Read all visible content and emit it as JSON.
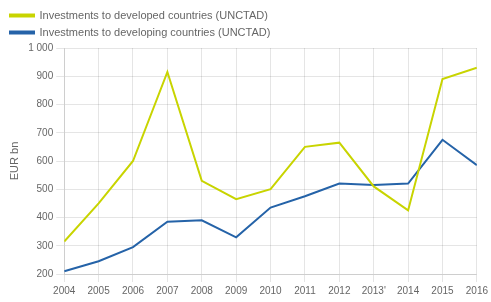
{
  "chart_data": {
    "type": "line",
    "ylabel": "EUR bn",
    "x": [
      2004,
      2005,
      2006,
      2007,
      2008,
      2009,
      2010,
      2011,
      2012,
      2013,
      2014,
      2015,
      2016
    ],
    "series": [
      {
        "name": "Investments to developed countries (UNCTAD)",
        "color": "#c8d400",
        "values": [
          315,
          450,
          600,
          915,
          530,
          465,
          500,
          650,
          665,
          510,
          425,
          890,
          930
        ]
      },
      {
        "name": "Investments to developing countries (UNCTAD)",
        "color": "#2563a8",
        "values": [
          210,
          245,
          295,
          385,
          390,
          330,
          435,
          475,
          520,
          515,
          520,
          675,
          585
        ]
      }
    ],
    "xlim": [
      2004,
      2016
    ],
    "xticks": [
      2004,
      2005,
      2006,
      2007,
      2008,
      2009,
      2010,
      2011,
      2012,
      {
        "value": 2013,
        "label": "2013'"
      },
      2014,
      2015,
      2016
    ],
    "ylim": [
      200,
      1000
    ],
    "yticks": [
      200,
      300,
      400,
      500,
      600,
      700,
      800,
      900,
      {
        "value": 1000,
        "label": "1 000"
      }
    ],
    "grid": true,
    "legend": "upper left"
  }
}
